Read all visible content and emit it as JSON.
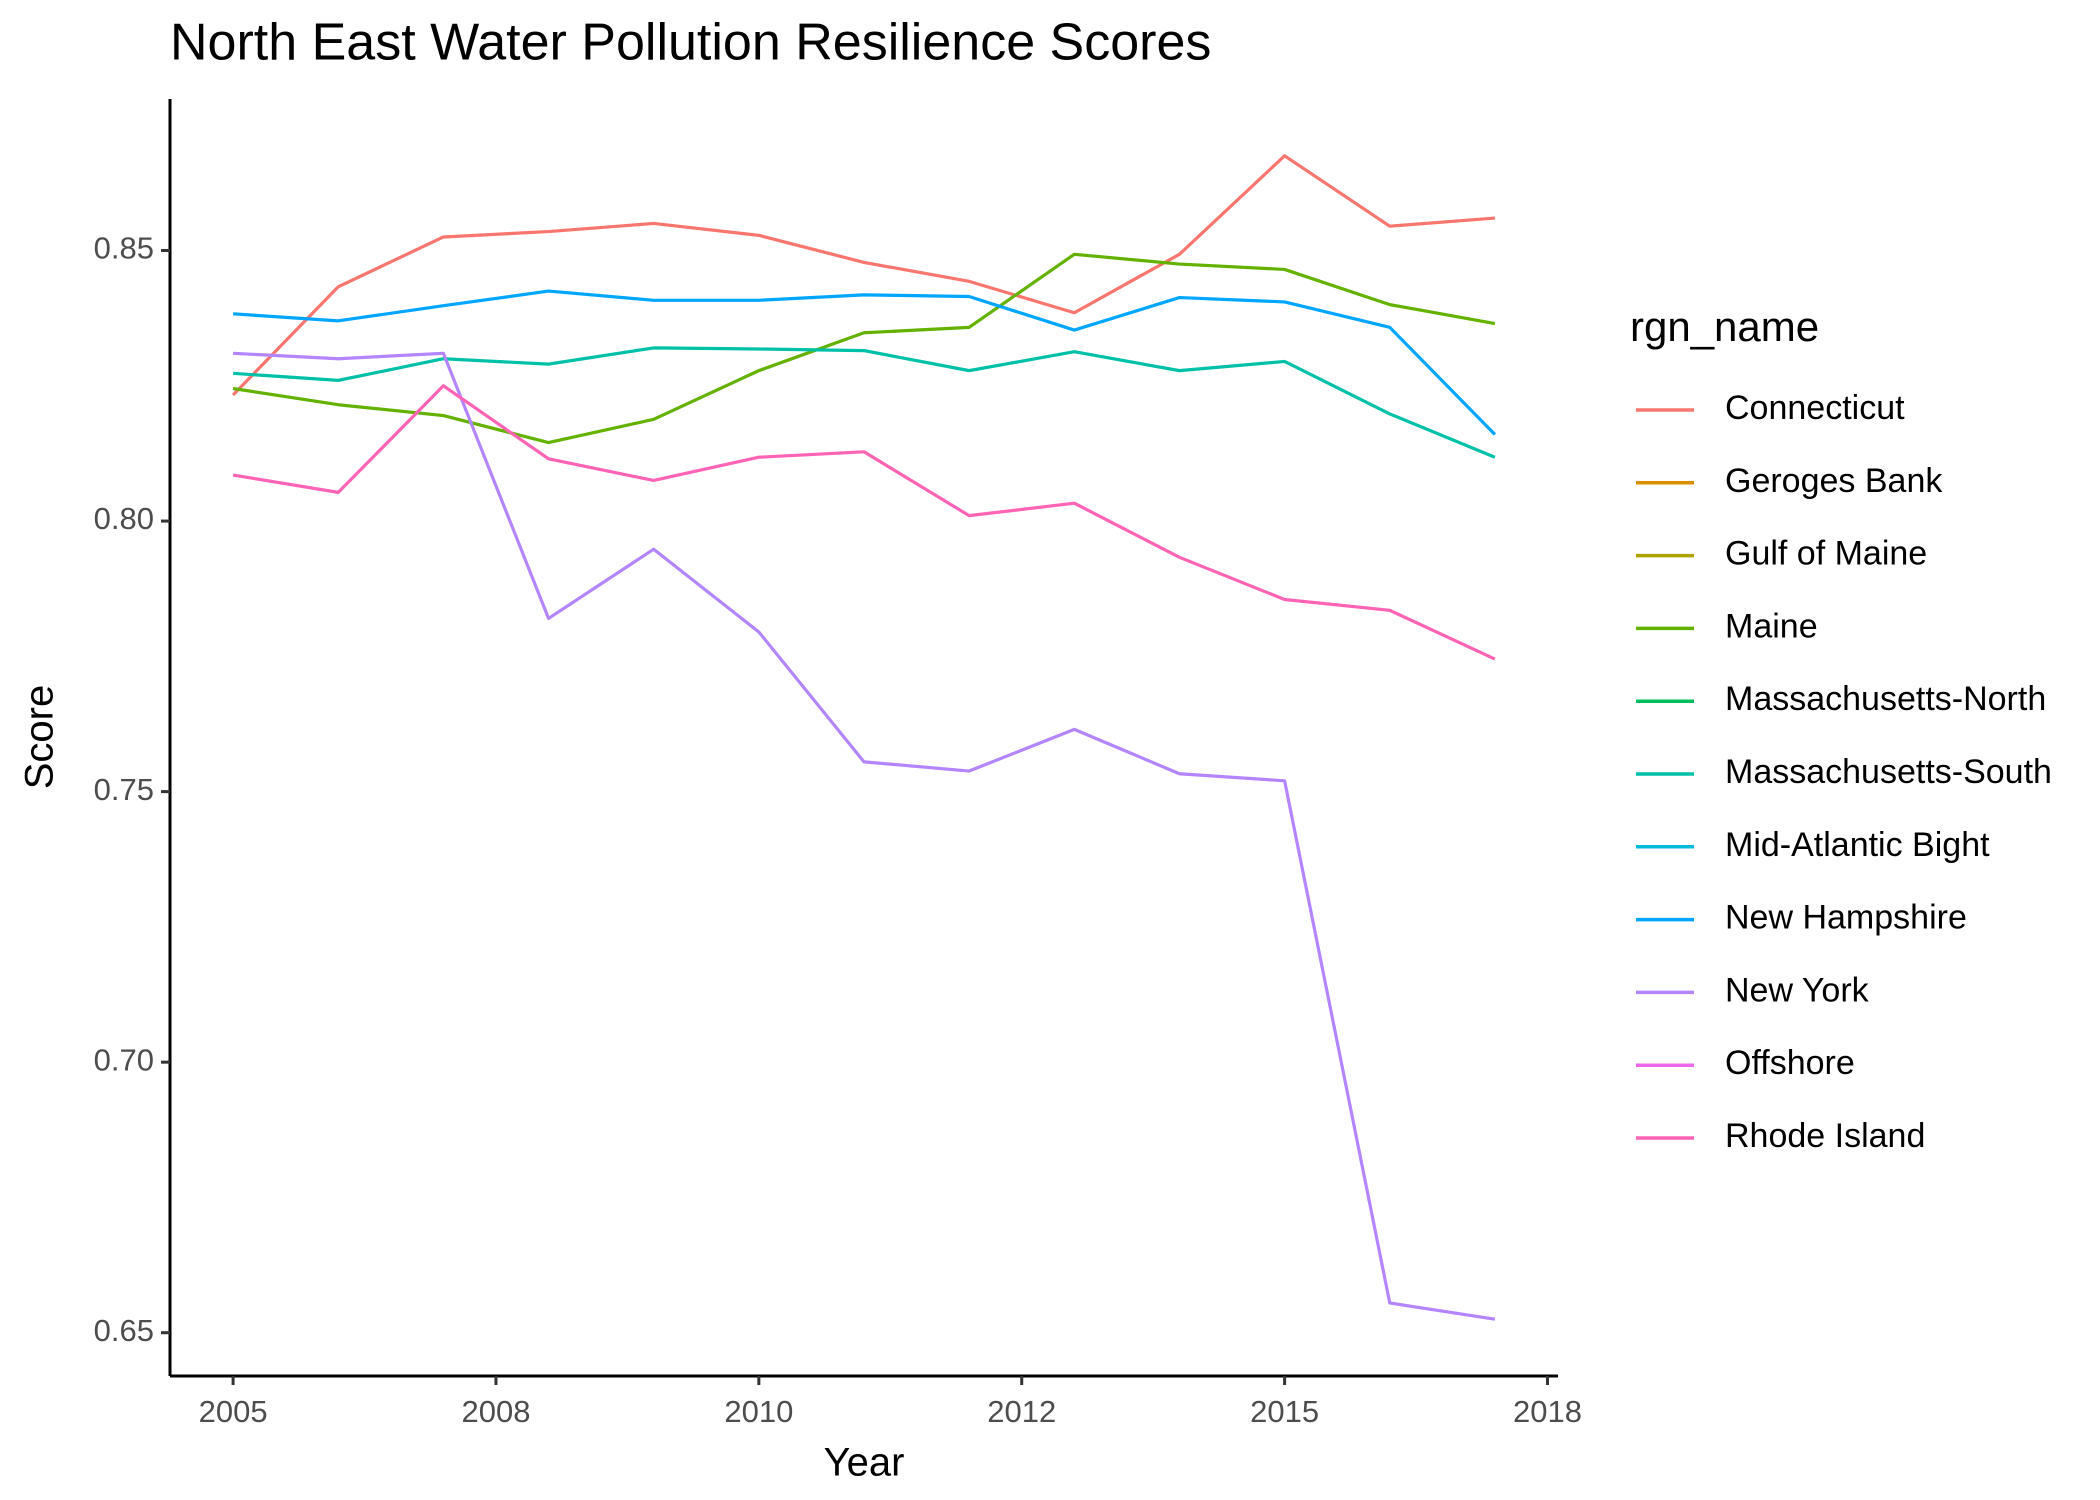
{
  "chart_data": {
    "type": "line",
    "title": "North East Water Pollution Resilience Scores",
    "xlabel": "Year",
    "ylabel": "Score",
    "legend_title": "rgn_name",
    "legend": "right",
    "x": [
      2005,
      2006,
      2007,
      2008,
      2009,
      2010,
      2011,
      2012,
      2013,
      2014,
      2015,
      2016,
      2017
    ],
    "xlim": [
      2004.4,
      2017.6
    ],
    "xticks": [
      2005,
      {
        "value": 2007.5,
        "label": "2008"
      },
      2010,
      {
        "value": 2012.5,
        "label": "2012"
      },
      2015,
      {
        "value": 2017.5,
        "label": "2018"
      }
    ],
    "ylim": [
      0.642,
      0.878
    ],
    "yticks": [
      {
        "value": 0.65,
        "label": "0.65"
      },
      {
        "value": 0.7,
        "label": "0.70"
      },
      {
        "value": 0.75,
        "label": "0.75"
      },
      {
        "value": 0.8,
        "label": "0.80"
      },
      {
        "value": 0.85,
        "label": "0.85"
      }
    ],
    "series": [
      {
        "name": "Connecticut",
        "color": "#F8766D",
        "values": [
          0.8233,
          0.8433,
          0.8525,
          0.8535,
          0.855,
          0.8528,
          0.8478,
          0.8443,
          0.8385,
          0.8493,
          0.8675,
          0.8545,
          0.856
        ]
      },
      {
        "name": "Geroges Bank",
        "color": "#DB8E00",
        "values": [
          null,
          null,
          null,
          null,
          null,
          null,
          null,
          null,
          null,
          null,
          null,
          null,
          null
        ]
      },
      {
        "name": "Gulf of Maine",
        "color": "#AEA200",
        "values": [
          null,
          null,
          null,
          null,
          null,
          null,
          null,
          null,
          null,
          null,
          null,
          null,
          null
        ]
      },
      {
        "name": "Maine",
        "color": "#64B200",
        "values": [
          0.8245,
          0.8215,
          0.8195,
          0.8145,
          0.8188,
          0.8278,
          0.8348,
          0.8358,
          0.8493,
          0.8475,
          0.8465,
          0.84,
          0.8365
        ]
      },
      {
        "name": "Massachusetts-North",
        "color": "#00BD5C",
        "values": [
          null,
          null,
          null,
          null,
          null,
          null,
          null,
          null,
          null,
          null,
          null,
          null,
          null
        ]
      },
      {
        "name": "Massachusetts-South",
        "color": "#00C1A7",
        "values": [
          0.8273,
          0.826,
          0.83,
          0.829,
          0.832,
          0.8318,
          0.8315,
          0.8278,
          0.8313,
          0.8278,
          0.8295,
          0.8198,
          0.8118
        ]
      },
      {
        "name": "Mid-Atlantic Bight",
        "color": "#00BADE",
        "values": [
          null,
          null,
          null,
          null,
          null,
          null,
          null,
          null,
          null,
          null,
          null,
          null,
          null
        ]
      },
      {
        "name": "New Hampshire",
        "color": "#00A6FF",
        "values": [
          0.8383,
          0.837,
          0.8398,
          0.8425,
          0.8408,
          0.8408,
          0.8418,
          0.8415,
          0.8353,
          0.8413,
          0.8405,
          0.8358,
          0.816
        ]
      },
      {
        "name": "New York",
        "color": "#B385FF",
        "values": [
          0.831,
          0.83,
          0.831,
          0.782,
          0.7948,
          0.7795,
          0.7555,
          0.7538,
          0.7615,
          0.7533,
          0.752,
          0.6555,
          0.6525
        ]
      },
      {
        "name": "Offshore",
        "color": "#EF67EB",
        "values": [
          null,
          null,
          null,
          null,
          null,
          null,
          null,
          null,
          null,
          null,
          null,
          null,
          null
        ]
      },
      {
        "name": "Rhode Island",
        "color": "#FF63B6",
        "values": [
          0.8085,
          0.8053,
          0.825,
          0.8115,
          0.8075,
          0.8118,
          0.8128,
          0.801,
          0.8033,
          0.7933,
          0.7855,
          0.7835,
          0.7745
        ]
      }
    ]
  }
}
